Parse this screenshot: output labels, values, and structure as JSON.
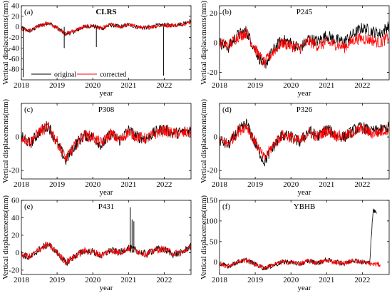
{
  "figure": {
    "legend_original": "original",
    "legend_corrected": "corrected"
  },
  "chart_data": [
    {
      "type": "line",
      "panel": "(a)",
      "title": "CLRS",
      "xlabel": "year",
      "ylabel": "Vertical displacements(mm)",
      "xlim": [
        2018.0,
        2022.75
      ],
      "ylim": [
        -100,
        40
      ],
      "xticks": [
        2018,
        2019,
        2020,
        2021,
        2022
      ],
      "yticks": [
        -80,
        -60,
        -40,
        -20,
        0,
        20,
        40
      ],
      "legend": {
        "position": "bottom-left",
        "entries": [
          "original",
          "corrected"
        ]
      },
      "series": [
        {
          "name": "original",
          "color": "#000000",
          "x": [
            2018.0,
            2018.25,
            2018.5,
            2018.75,
            2019.0,
            2019.25,
            2019.5,
            2019.75,
            2020.0,
            2020.25,
            2020.5,
            2020.75,
            2021.0,
            2021.25,
            2021.5,
            2021.75,
            2022.0,
            2022.25,
            2022.5,
            2022.75
          ],
          "y": [
            -3,
            -8,
            2,
            8,
            -2,
            -14,
            -8,
            0,
            2,
            -3,
            4,
            0,
            4,
            0,
            -2,
            2,
            4,
            3,
            6,
            12
          ]
        },
        {
          "name": "corrected",
          "color": "#ff0000",
          "x": [
            2018.0,
            2018.25,
            2018.5,
            2018.75,
            2019.0,
            2019.25,
            2019.5,
            2019.75,
            2020.0,
            2020.25,
            2020.5,
            2020.75,
            2021.0,
            2021.25,
            2021.5,
            2021.75,
            2022.0,
            2022.25,
            2022.5,
            2022.75
          ],
          "y": [
            -3,
            -7,
            2,
            7,
            -2,
            -13,
            -7,
            0,
            2,
            -3,
            4,
            0,
            4,
            0,
            -2,
            2,
            3,
            3,
            5,
            10
          ]
        }
      ],
      "spikes": [
        {
          "x": 2018.05,
          "y": -95
        },
        {
          "x": 2019.2,
          "y": -40
        },
        {
          "x": 2020.1,
          "y": -38
        },
        {
          "x": 2021.98,
          "y": -92
        }
      ]
    },
    {
      "type": "line",
      "panel": "(b)",
      "title": "P245",
      "xlabel": "year",
      "ylabel": "",
      "xlim": [
        2018.0,
        2022.75
      ],
      "ylim": [
        -25,
        25
      ],
      "xticks": [
        2018,
        2019,
        2020,
        2021,
        2022
      ],
      "yticks": [
        -20,
        0,
        20
      ],
      "series": [
        {
          "name": "original",
          "color": "#000000",
          "x": [
            2018.0,
            2018.25,
            2018.5,
            2018.75,
            2019.0,
            2019.25,
            2019.5,
            2019.75,
            2020.0,
            2020.25,
            2020.5,
            2020.75,
            2021.0,
            2021.25,
            2021.5,
            2021.75,
            2022.0,
            2022.25,
            2022.5,
            2022.75
          ],
          "y": [
            0,
            -3,
            5,
            8,
            -5,
            -16,
            -5,
            2,
            0,
            -4,
            3,
            1,
            5,
            2,
            1,
            6,
            10,
            8,
            6,
            12
          ]
        },
        {
          "name": "corrected",
          "color": "#ff0000",
          "x": [
            2018.0,
            2018.25,
            2018.5,
            2018.75,
            2019.0,
            2019.25,
            2019.5,
            2019.75,
            2020.0,
            2020.25,
            2020.5,
            2020.75,
            2021.0,
            2021.25,
            2021.5,
            2021.75,
            2022.0,
            2022.25,
            2022.5,
            2022.75
          ],
          "y": [
            0,
            -2,
            4,
            7,
            -4,
            -14,
            -6,
            0,
            -2,
            -4,
            1,
            -2,
            0,
            -1,
            -3,
            2,
            3,
            2,
            0,
            4
          ]
        }
      ]
    },
    {
      "type": "line",
      "panel": "(c)",
      "title": "P308",
      "xlabel": "year",
      "ylabel": "Vertical displacements(mm)",
      "xlim": [
        2018.0,
        2022.75
      ],
      "ylim": [
        -25,
        20
      ],
      "xticks": [
        2018,
        2019,
        2020,
        2021,
        2022
      ],
      "yticks": [
        -20,
        0
      ],
      "series": [
        {
          "name": "original",
          "color": "#000000",
          "x": [
            2018.0,
            2018.25,
            2018.5,
            2018.75,
            2019.0,
            2019.25,
            2019.5,
            2019.75,
            2020.0,
            2020.25,
            2020.5,
            2020.75,
            2021.0,
            2021.25,
            2021.5,
            2021.75,
            2022.0,
            2022.25,
            2022.5,
            2022.75
          ],
          "y": [
            0,
            -4,
            3,
            7,
            -4,
            -14,
            -5,
            1,
            0,
            -5,
            2,
            -2,
            4,
            0,
            -1,
            3,
            5,
            2,
            3,
            4
          ]
        },
        {
          "name": "corrected",
          "color": "#ff0000",
          "x": [
            2018.0,
            2018.25,
            2018.5,
            2018.75,
            2019.0,
            2019.25,
            2019.5,
            2019.75,
            2020.0,
            2020.25,
            2020.5,
            2020.75,
            2021.0,
            2021.25,
            2021.5,
            2021.75,
            2022.0,
            2022.25,
            2022.5,
            2022.75
          ],
          "y": [
            0,
            -3,
            3,
            6,
            -3,
            -13,
            -5,
            1,
            0,
            -4,
            2,
            -2,
            3,
            0,
            -1,
            2,
            4,
            2,
            2,
            3
          ]
        }
      ]
    },
    {
      "type": "line",
      "panel": "(d)",
      "title": "P326",
      "xlabel": "year",
      "ylabel": "",
      "xlim": [
        2018.0,
        2022.75
      ],
      "ylim": [
        -25,
        20
      ],
      "xticks": [
        2018,
        2019,
        2020,
        2021,
        2022
      ],
      "yticks": [
        -20,
        0
      ],
      "series": [
        {
          "name": "original",
          "color": "#000000",
          "x": [
            2018.0,
            2018.25,
            2018.5,
            2018.75,
            2019.0,
            2019.25,
            2019.5,
            2019.75,
            2020.0,
            2020.25,
            2020.5,
            2020.75,
            2021.0,
            2021.25,
            2021.5,
            2021.75,
            2022.0,
            2022.25,
            2022.5,
            2022.75
          ],
          "y": [
            -2,
            -5,
            3,
            8,
            -4,
            -15,
            -6,
            1,
            0,
            -3,
            4,
            0,
            5,
            1,
            0,
            4,
            6,
            3,
            4,
            6
          ]
        },
        {
          "name": "corrected",
          "color": "#ff0000",
          "x": [
            2018.0,
            2018.25,
            2018.5,
            2018.75,
            2019.0,
            2019.25,
            2019.5,
            2019.75,
            2020.0,
            2020.25,
            2020.5,
            2020.75,
            2021.0,
            2021.25,
            2021.5,
            2021.75,
            2022.0,
            2022.25,
            2022.5,
            2022.75
          ],
          "y": [
            -2,
            -4,
            3,
            7,
            -3,
            -13,
            -5,
            1,
            0,
            -3,
            3,
            0,
            4,
            1,
            0,
            3,
            5,
            2,
            3,
            5
          ]
        }
      ]
    },
    {
      "type": "line",
      "panel": "(e)",
      "title": "P431",
      "xlabel": "year",
      "ylabel": "Vertical displacements(mm)",
      "xlim": [
        2018.0,
        2022.75
      ],
      "ylim": [
        -25,
        60
      ],
      "xticks": [
        2018,
        2019,
        2020,
        2021,
        2022
      ],
      "yticks": [
        -20,
        0,
        20,
        40,
        60
      ],
      "series": [
        {
          "name": "original",
          "color": "#000000",
          "x": [
            2018.0,
            2018.25,
            2018.5,
            2018.75,
            2019.0,
            2019.25,
            2019.5,
            2019.75,
            2020.0,
            2020.25,
            2020.5,
            2020.75,
            2021.0,
            2021.25,
            2021.5,
            2021.75,
            2022.0,
            2022.25,
            2022.5,
            2022.75
          ],
          "y": [
            -2,
            -6,
            4,
            10,
            0,
            -12,
            -4,
            2,
            1,
            -4,
            3,
            0,
            6,
            2,
            -2,
            4,
            4,
            -2,
            0,
            8
          ]
        },
        {
          "name": "corrected",
          "color": "#ff0000",
          "x": [
            2018.0,
            2018.25,
            2018.5,
            2018.75,
            2019.0,
            2019.25,
            2019.5,
            2019.75,
            2020.0,
            2020.25,
            2020.5,
            2020.75,
            2021.0,
            2021.25,
            2021.5,
            2021.75,
            2022.0,
            2022.25,
            2022.5,
            2022.75
          ],
          "y": [
            -2,
            -5,
            4,
            9,
            0,
            -11,
            -4,
            2,
            1,
            -3,
            3,
            0,
            5,
            2,
            -2,
            3,
            4,
            -1,
            0,
            7
          ]
        }
      ],
      "spikes": [
        {
          "x": 2021.05,
          "y": 52
        },
        {
          "x": 2021.1,
          "y": 38
        },
        {
          "x": 2021.15,
          "y": 36
        }
      ]
    },
    {
      "type": "line",
      "panel": "(f)",
      "title": "YBHB",
      "xlabel": "year",
      "ylabel": "",
      "xlim": [
        2018.0,
        2022.75
      ],
      "ylim": [
        -30,
        150
      ],
      "xticks": [
        2018,
        2019,
        2020,
        2021,
        2022
      ],
      "yticks": [
        0,
        50,
        100,
        150
      ],
      "series": [
        {
          "name": "original",
          "color": "#000000",
          "x": [
            2018.0,
            2018.25,
            2018.5,
            2018.75,
            2019.0,
            2019.25,
            2019.5,
            2019.75,
            2020.0,
            2020.25,
            2020.5,
            2020.75,
            2021.0,
            2021.25,
            2021.5,
            2021.75,
            2022.0,
            2022.2,
            2022.3,
            2022.35,
            2022.4
          ],
          "y": [
            -5,
            -10,
            0,
            5,
            -5,
            -15,
            -8,
            0,
            0,
            -5,
            3,
            -2,
            5,
            0,
            -3,
            5,
            0,
            -2,
            125,
            122,
            118
          ]
        },
        {
          "name": "corrected",
          "color": "#ff0000",
          "x": [
            2018.0,
            2018.25,
            2018.5,
            2018.75,
            2019.0,
            2019.25,
            2019.5,
            2019.75,
            2020.0,
            2020.25,
            2020.5,
            2020.75,
            2021.0,
            2021.25,
            2021.5,
            2021.75,
            2022.0,
            2022.25,
            2022.5
          ],
          "y": [
            -5,
            -9,
            0,
            5,
            -5,
            -14,
            -7,
            0,
            0,
            -4,
            3,
            -2,
            4,
            0,
            -3,
            4,
            0,
            -4,
            -6
          ]
        }
      ]
    }
  ]
}
